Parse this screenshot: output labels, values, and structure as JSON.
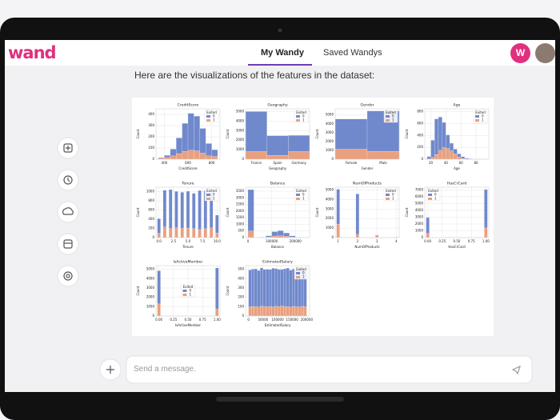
{
  "header": {
    "logo": "wand",
    "tabs": [
      "My Wandy",
      "Saved Wandys"
    ],
    "avatar": "W"
  },
  "message": "Here are the visualizations of the features in the dataset:",
  "input_placeholder": "Send a message.",
  "chart_data": [
    {
      "type": "histogram",
      "title": "CreditScore",
      "xlabel": "CreditScore",
      "ylabel": "Count",
      "legend_title": "Exited",
      "legend": "upper right",
      "grid": true,
      "bins": [
        350,
        400,
        450,
        500,
        550,
        600,
        650,
        700,
        750,
        800,
        850
      ],
      "xlim": [
        330,
        870
      ],
      "xticks": [
        400,
        600,
        800
      ],
      "ylim": [
        0,
        450
      ],
      "yticks": [
        0,
        100,
        200,
        300,
        400
      ],
      "series": [
        {
          "name": "0",
          "color": "#7089cc",
          "values": [
            5,
            20,
            60,
            140,
            250,
            330,
            310,
            220,
            110,
            60
          ]
        },
        {
          "name": "1",
          "color": "#e9a07e",
          "values": [
            10,
            15,
            30,
            50,
            70,
            80,
            75,
            55,
            30,
            25
          ]
        }
      ]
    },
    {
      "type": "bar",
      "title": "Geography",
      "xlabel": "Geography",
      "ylabel": "Count",
      "legend_title": "Exited",
      "legend": "upper right",
      "grid": true,
      "categories": [
        "France",
        "Spain",
        "Germany"
      ],
      "ylim": [
        0,
        5300
      ],
      "yticks": [
        0,
        1000,
        2000,
        3000,
        4000,
        5000
      ],
      "series": [
        {
          "name": "0",
          "color": "#7089cc",
          "values": [
            4204,
            2064,
            1695
          ]
        },
        {
          "name": "1",
          "color": "#e9a07e",
          "values": [
            810,
            413,
            814
          ]
        }
      ]
    },
    {
      "type": "bar",
      "title": "Gender",
      "xlabel": "Gender",
      "ylabel": "Count",
      "legend_title": "Exited",
      "legend": "upper right",
      "grid": true,
      "categories": [
        "Female",
        "Male"
      ],
      "ylim": [
        0,
        5700
      ],
      "yticks": [
        0,
        1000,
        2000,
        3000,
        4000,
        5000
      ],
      "series": [
        {
          "name": "0",
          "color": "#7089cc",
          "values": [
            3404,
            4559
          ]
        },
        {
          "name": "1",
          "color": "#e9a07e",
          "values": [
            1139,
            898
          ]
        }
      ]
    },
    {
      "type": "histogram",
      "title": "Age",
      "xlabel": "Age",
      "ylabel": "Count",
      "legend_title": "Exited",
      "legend": "upper right",
      "grid": true,
      "bins": [
        15,
        20,
        25,
        30,
        35,
        40,
        45,
        50,
        55,
        60,
        65,
        70,
        75,
        80,
        85,
        90,
        95
      ],
      "xlim": [
        12,
        97
      ],
      "xticks": [
        20,
        40,
        60,
        80
      ],
      "ylim": [
        0,
        850
      ],
      "yticks": [
        0,
        200,
        400,
        600,
        800
      ],
      "series": [
        {
          "name": "0",
          "color": "#7089cc",
          "values": [
            40,
            290,
            600,
            560,
            420,
            230,
            130,
            80,
            50,
            30,
            15,
            8,
            4,
            2,
            1,
            0
          ]
        },
        {
          "name": "1",
          "color": "#e9a07e",
          "values": [
            5,
            30,
            80,
            150,
            200,
            180,
            140,
            90,
            40,
            12,
            3,
            1,
            0,
            0,
            0,
            0
          ]
        }
      ]
    },
    {
      "type": "bar",
      "title": "Tenure",
      "xlabel": "Tenure",
      "ylabel": "Count",
      "legend_title": "Exited",
      "legend": "upper right",
      "grid": true,
      "x": [
        0,
        1,
        2,
        3,
        4,
        5,
        6,
        7,
        8,
        9,
        10
      ],
      "xlim": [
        -0.5,
        10.5
      ],
      "xticks": [
        {
          "value": 0,
          "label": "0.0"
        },
        {
          "value": 2.5,
          "label": "2.5"
        },
        {
          "value": 5,
          "label": "5.0"
        },
        {
          "value": 7.5,
          "label": "7.5"
        },
        {
          "value": 10,
          "label": "10.0"
        }
      ],
      "ylim": [
        0,
        1100
      ],
      "yticks": [
        0,
        200,
        400,
        600,
        800,
        1000
      ],
      "series": [
        {
          "name": "0",
          "color": "#7089cc",
          "values": [
            318,
            803,
            847,
            796,
            786,
            803,
            771,
            851,
            828,
            771,
            389
          ]
        },
        {
          "name": "1",
          "color": "#e9a07e",
          "values": [
            95,
            232,
            201,
            213,
            203,
            209,
            196,
            177,
            197,
            213,
            101
          ]
        }
      ]
    },
    {
      "type": "histogram",
      "title": "Balance",
      "xlabel": "Balance",
      "ylabel": "Count",
      "legend_title": "Exited",
      "legend": "upper right",
      "grid": true,
      "bins": [
        0,
        25000,
        50000,
        75000,
        100000,
        125000,
        150000,
        175000,
        200000,
        225000,
        250000
      ],
      "xlim": [
        -10000,
        260000
      ],
      "xticks": [
        0,
        100000,
        200000
      ],
      "ylim": [
        0,
        3800
      ],
      "yticks": [
        0,
        500,
        1000,
        1500,
        2000,
        2500,
        3000,
        3500
      ],
      "series": [
        {
          "name": "0",
          "color": "#7089cc",
          "values": [
            3117,
            5,
            20,
            100,
            330,
            380,
            250,
            90,
            20,
            5
          ]
        },
        {
          "name": "1",
          "color": "#e9a07e",
          "values": [
            500,
            2,
            10,
            40,
            120,
            140,
            100,
            40,
            10,
            3
          ]
        }
      ]
    },
    {
      "type": "bar",
      "title": "NumOfProducts",
      "xlabel": "NumOfProducts",
      "ylabel": "Count",
      "legend_title": "Exited",
      "legend": "upper right",
      "grid": true,
      "x": [
        1,
        2,
        3,
        4
      ],
      "xlim": [
        0.85,
        4.15
      ],
      "xticks": [
        1,
        2,
        3,
        4
      ],
      "ylim": [
        0,
        5300
      ],
      "yticks": [
        0,
        1000,
        2000,
        3000,
        4000,
        5000
      ],
      "series": [
        {
          "name": "0",
          "color": "#7089cc",
          "values": [
            3675,
            4242,
            46,
            0
          ]
        },
        {
          "name": "1",
          "color": "#e9a07e",
          "values": [
            1409,
            348,
            220,
            60
          ]
        }
      ]
    },
    {
      "type": "bar",
      "title": "HasCrCard",
      "xlabel": "HasCrCard",
      "ylabel": "Count",
      "legend_title": "Exited",
      "legend": "upper left",
      "grid": true,
      "x": [
        0,
        1
      ],
      "xlim": [
        -0.05,
        1.05
      ],
      "xticks": [
        {
          "value": 0,
          "label": "0.00"
        },
        {
          "value": 0.25,
          "label": "0.25"
        },
        {
          "value": 0.5,
          "label": "0.50"
        },
        {
          "value": 0.75,
          "label": "0.75"
        },
        {
          "value": 1,
          "label": "1.00"
        }
      ],
      "ylim": [
        0,
        7400
      ],
      "yticks": [
        0,
        1000,
        2000,
        3000,
        4000,
        5000,
        6000,
        7000
      ],
      "series": [
        {
          "name": "0",
          "color": "#7089cc",
          "values": [
            2332,
            5631
          ]
        },
        {
          "name": "1",
          "color": "#e9a07e",
          "values": [
            613,
            1424
          ]
        }
      ]
    },
    {
      "type": "bar",
      "title": "IsActiveMember",
      "xlabel": "IsActiveMember",
      "ylabel": "Count",
      "legend_title": "Exited",
      "legend": "center",
      "grid": true,
      "x": [
        0,
        1
      ],
      "xlim": [
        -0.05,
        1.05
      ],
      "xticks": [
        {
          "value": 0,
          "label": "0.00"
        },
        {
          "value": 0.25,
          "label": "0.25"
        },
        {
          "value": 0.5,
          "label": "0.50"
        },
        {
          "value": 0.75,
          "label": "0.75"
        },
        {
          "value": 1,
          "label": "1.00"
        }
      ],
      "ylim": [
        0,
        5400
      ],
      "yticks": [
        0,
        1000,
        2000,
        3000,
        4000,
        5000
      ],
      "series": [
        {
          "name": "0",
          "color": "#7089cc",
          "values": [
            3547,
            4416
          ]
        },
        {
          "name": "1",
          "color": "#e9a07e",
          "values": [
            1302,
            735
          ]
        }
      ]
    },
    {
      "type": "histogram",
      "title": "EstimatedSalary",
      "xlabel": "EstimatedSalary",
      "ylabel": "Count",
      "legend_title": "Exited",
      "legend": "upper right",
      "grid": true,
      "bins": [
        0,
        10000,
        20000,
        30000,
        40000,
        50000,
        60000,
        70000,
        80000,
        90000,
        100000,
        110000,
        120000,
        130000,
        140000,
        150000,
        160000,
        170000,
        180000,
        190000,
        200000
      ],
      "xlim": [
        -10000,
        210000
      ],
      "xticks": [
        0,
        50000,
        100000,
        150000,
        200000
      ],
      "ylim": [
        0,
        540
      ],
      "yticks": [
        0,
        100,
        200,
        300,
        400,
        500
      ],
      "series": [
        {
          "name": "0",
          "color": "#7089cc",
          "values": [
            395,
            400,
            405,
            392,
            410,
            398,
            402,
            396,
            415,
            404,
            399,
            392,
            407,
            412,
            397,
            401,
            393,
            409,
            403,
            398
          ]
        },
        {
          "name": "1",
          "color": "#e9a07e",
          "values": [
            98,
            102,
            100,
            96,
            105,
            101,
            99,
            103,
            97,
            104,
            100,
            108,
            99,
            102,
            95,
            103,
            100,
            97,
            104,
            101
          ]
        }
      ]
    }
  ]
}
